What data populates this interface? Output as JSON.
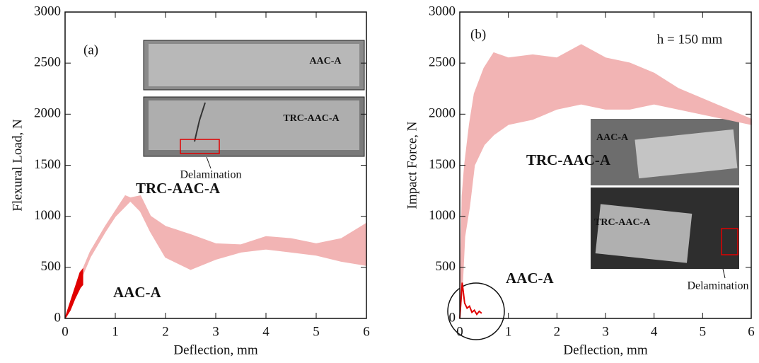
{
  "chart_data": [
    {
      "type": "line",
      "xlabel": "Deflection, mm",
      "ylabel": "Flexural Load, N",
      "xlim": [
        0,
        6
      ],
      "ylim": [
        0,
        3000
      ],
      "xticks": [
        0,
        1,
        2,
        3,
        4,
        5,
        6
      ],
      "yticks": [
        0,
        500,
        1000,
        1500,
        2000,
        2500,
        3000
      ],
      "annotations": [
        "(a)",
        "Delamination"
      ],
      "inset_labels": [
        "AAC-A",
        "TRC-AAC-A"
      ],
      "series": [
        {
          "name": "TRC-AAC-A",
          "color": "#f2b4b4",
          "x": [
            0,
            0.2,
            0.5,
            0.8,
            1.0,
            1.2,
            1.3,
            1.5,
            1.7,
            2.0,
            2.5,
            3.0,
            3.5,
            4.0,
            4.5,
            5.0,
            5.5,
            6.0
          ],
          "values": [
            0,
            300,
            650,
            900,
            1050,
            1200,
            1180,
            1200,
            1000,
            900,
            820,
            730,
            720,
            800,
            780,
            730,
            780,
            930
          ],
          "lower": [
            0,
            250,
            600,
            850,
            1000,
            1100,
            1150,
            1050,
            850,
            600,
            480,
            580,
            650,
            680,
            650,
            620,
            560,
            520
          ]
        },
        {
          "name": "AAC-A",
          "color": "#e00000",
          "x": [
            0,
            0.1,
            0.2,
            0.3,
            0.35
          ],
          "values": [
            0,
            150,
            300,
            450,
            480
          ],
          "lower": [
            0,
            80,
            200,
            300,
            330
          ]
        }
      ]
    },
    {
      "type": "line",
      "xlabel": "Deflection, mm",
      "ylabel": "Impact Force, N",
      "xlim": [
        0,
        6
      ],
      "ylim": [
        0,
        3000
      ],
      "xticks": [
        0,
        1,
        2,
        3,
        4,
        5,
        6
      ],
      "yticks": [
        0,
        500,
        1000,
        1500,
        2000,
        2500,
        3000
      ],
      "annotations": [
        "(b)",
        "h = 150 mm",
        "Delamination"
      ],
      "inset_labels": [
        "AAC-A",
        "TRC-AAC-A"
      ],
      "series": [
        {
          "name": "TRC-AAC-A",
          "color": "#f2b4b4",
          "x": [
            0,
            0.05,
            0.1,
            0.2,
            0.3,
            0.5,
            0.7,
            1.0,
            1.5,
            2.0,
            2.5,
            3.0,
            3.5,
            4.0,
            4.5,
            5.0,
            5.5,
            6.0
          ],
          "values": [
            0,
            1200,
            1500,
            1900,
            2200,
            2450,
            2600,
            2550,
            2580,
            2550,
            2680,
            2550,
            2500,
            2400,
            2250,
            2150,
            2050,
            1950
          ],
          "lower": [
            0,
            300,
            800,
            1100,
            1500,
            1700,
            1800,
            1900,
            1950,
            2050,
            2100,
            2050,
            2050,
            2100,
            2050,
            2000,
            1950,
            1900
          ]
        },
        {
          "name": "AAC-A",
          "color": "#e00000",
          "x": [
            0,
            0.05,
            0.1,
            0.15,
            0.2,
            0.25,
            0.3,
            0.35,
            0.4,
            0.45
          ],
          "values": [
            0,
            350,
            150,
            100,
            120,
            60,
            80,
            40,
            70,
            50
          ]
        }
      ]
    }
  ]
}
